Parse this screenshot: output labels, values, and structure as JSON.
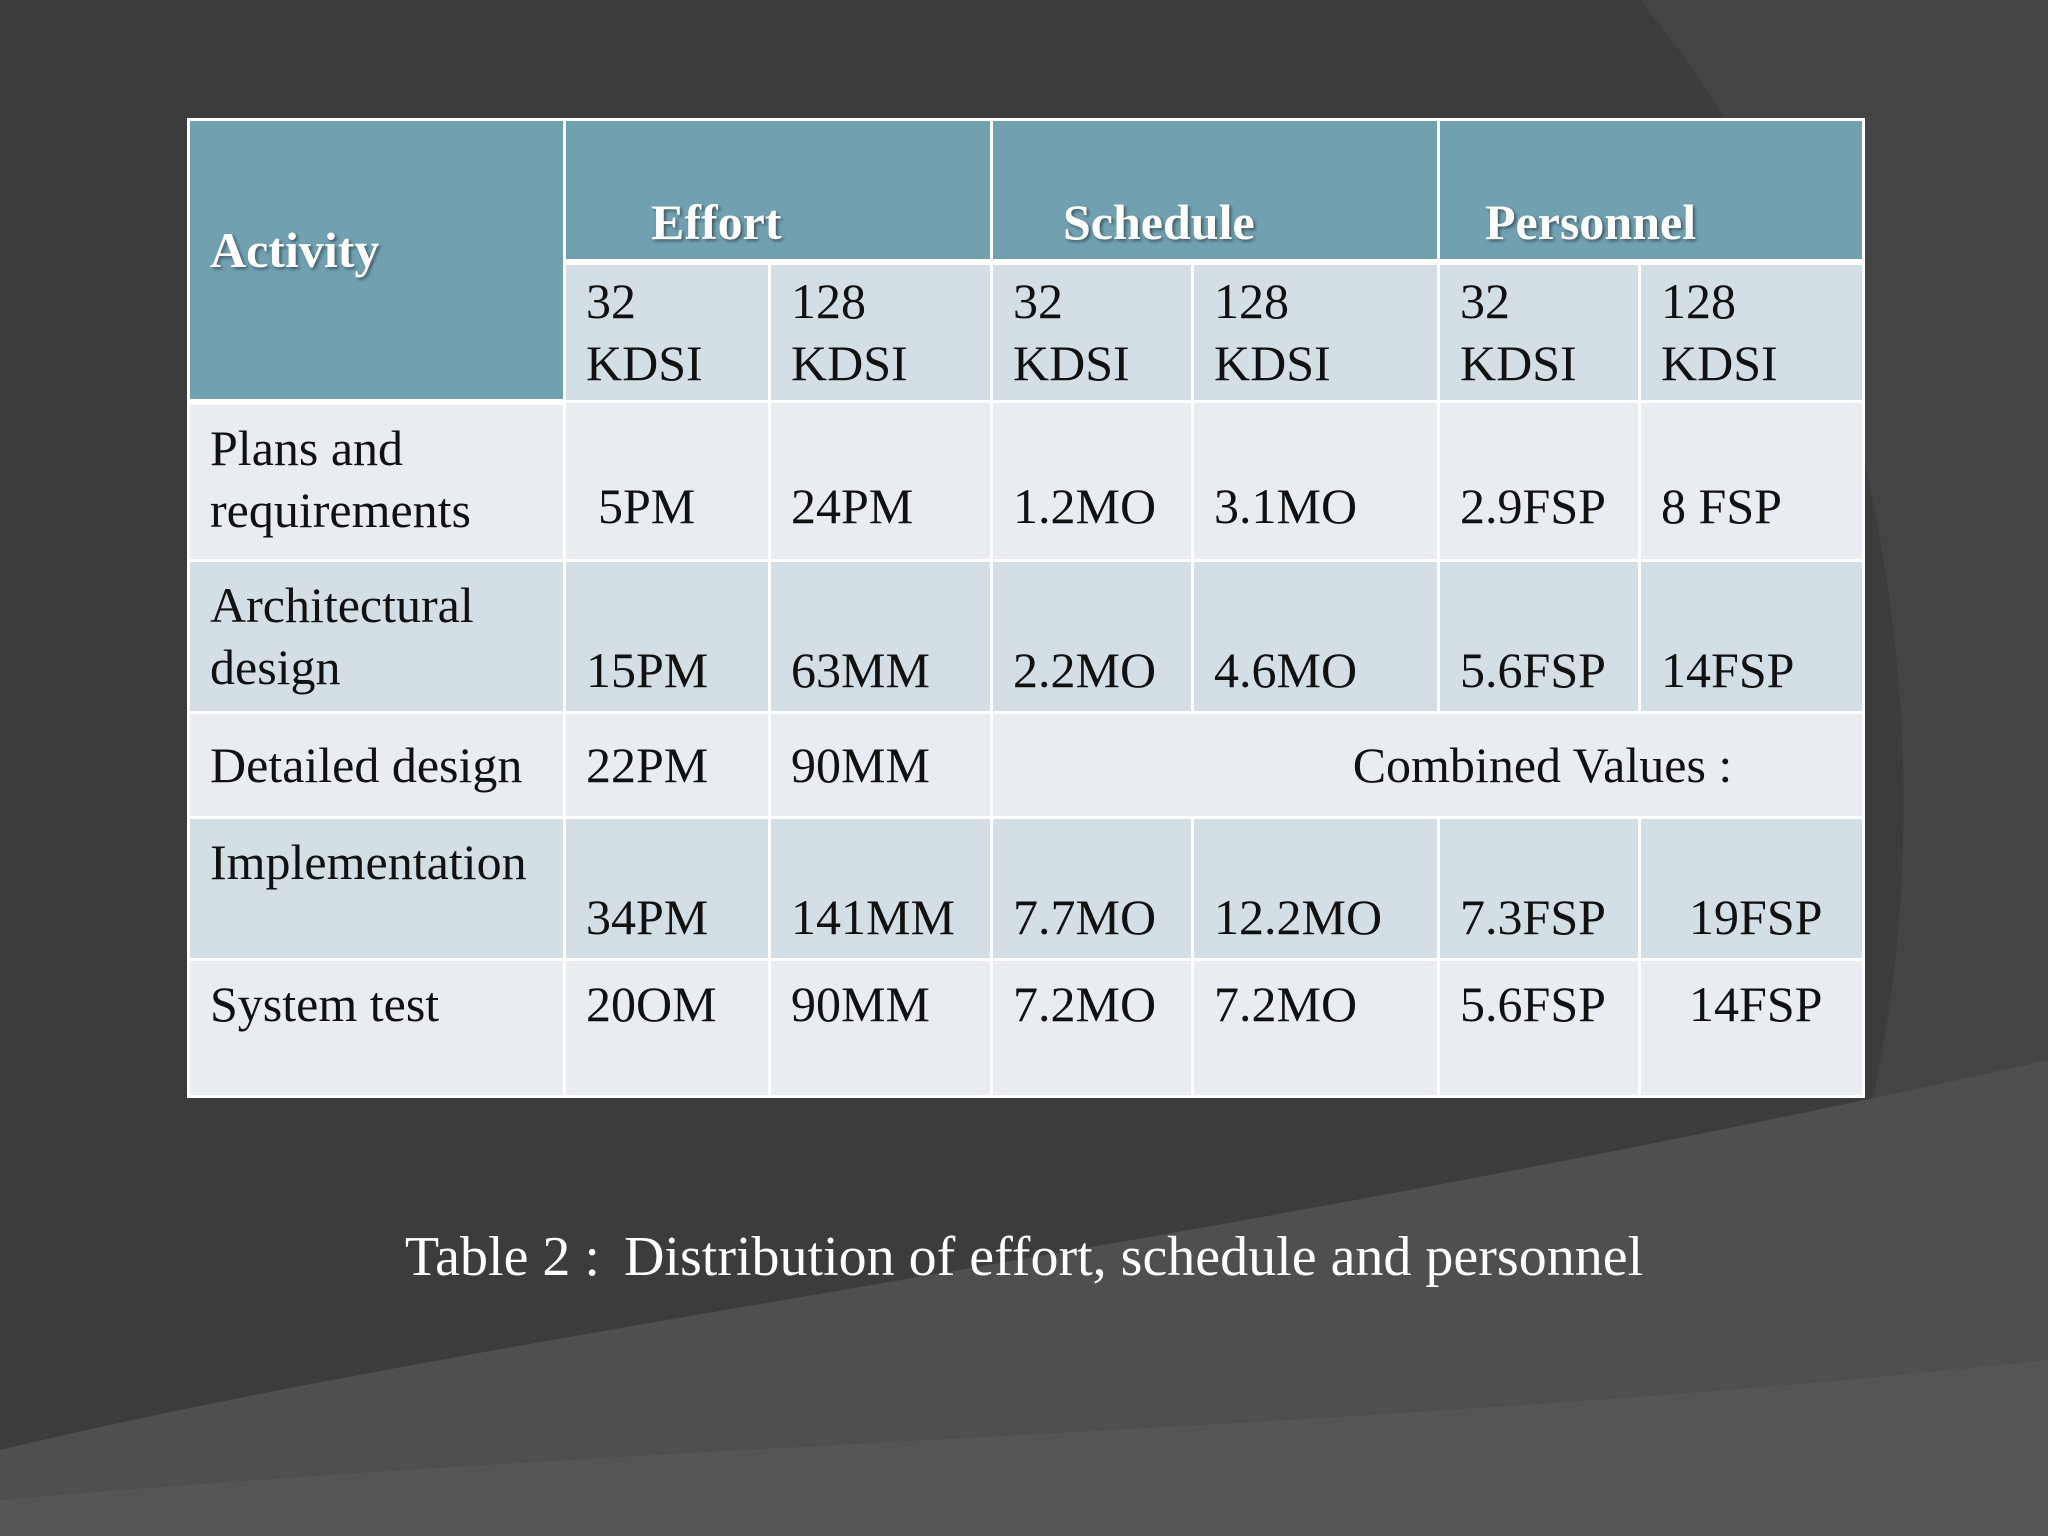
{
  "header": {
    "activity": "Activity",
    "groups": [
      "Effort",
      "Schedule",
      "Personnel"
    ],
    "subheaders": [
      "32\nKDSI",
      "128\nKDSI",
      "32\nKDSI",
      "128\nKDSI",
      "32\nKDSI",
      "128\nKDSI"
    ]
  },
  "rows": [
    {
      "activity": "Plans and\nrequirements",
      "values": [
        "5PM",
        "24PM",
        "1.2MO",
        "3.1MO",
        "2.9FSP",
        "8 FSP"
      ]
    },
    {
      "activity": "Architectural\ndesign",
      "values": [
        "15PM",
        "63MM",
        "2.2MO",
        "4.6MO",
        "5.6FSP",
        "14FSP"
      ]
    },
    {
      "activity": "Detailed design",
      "values": [
        "22PM",
        "90MM"
      ],
      "combined": "Combined Values :"
    },
    {
      "activity": "Implementation",
      "values": [
        "34PM",
        "141MM",
        "7.7MO",
        "12.2MO",
        "7.3FSP",
        "19FSP"
      ]
    },
    {
      "activity": "System test",
      "values": [
        "20OM",
        "90MM",
        "7.2MO",
        "7.2MO",
        "5.6FSP",
        "14FSP"
      ]
    }
  ],
  "caption": {
    "label": "Table 2 :",
    "text": "Distribution of effort, schedule and personnel"
  },
  "colors": {
    "background": "#3c3c3d",
    "header": "#71a1b1",
    "row_light": "#e9edf2",
    "row_dark": "#d4dfe5"
  }
}
